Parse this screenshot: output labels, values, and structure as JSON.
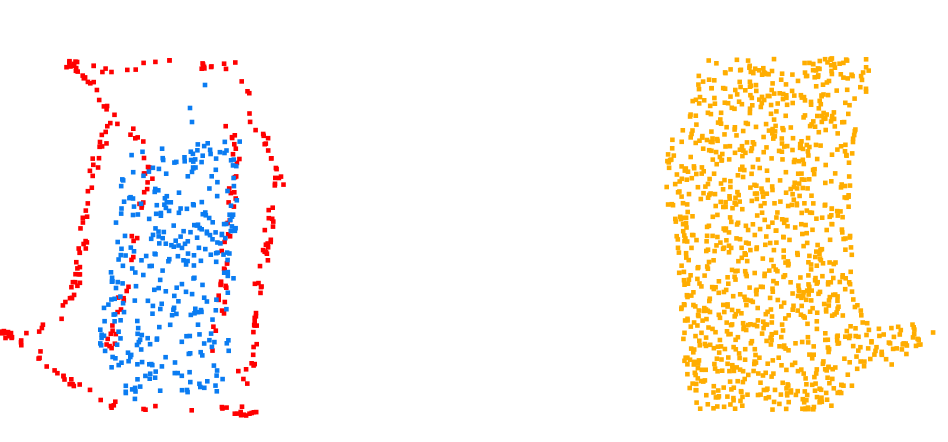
{
  "panels": [
    {
      "name": "left-point-cloud",
      "series": [
        {
          "name": "",
          "color": "#ff0000"
        },
        {
          "name": "",
          "color": "#0a7cf2"
        }
      ]
    },
    {
      "name": "right-point-cloud",
      "series": [
        {
          "name": "",
          "color": "#ffad00"
        }
      ]
    }
  ]
}
